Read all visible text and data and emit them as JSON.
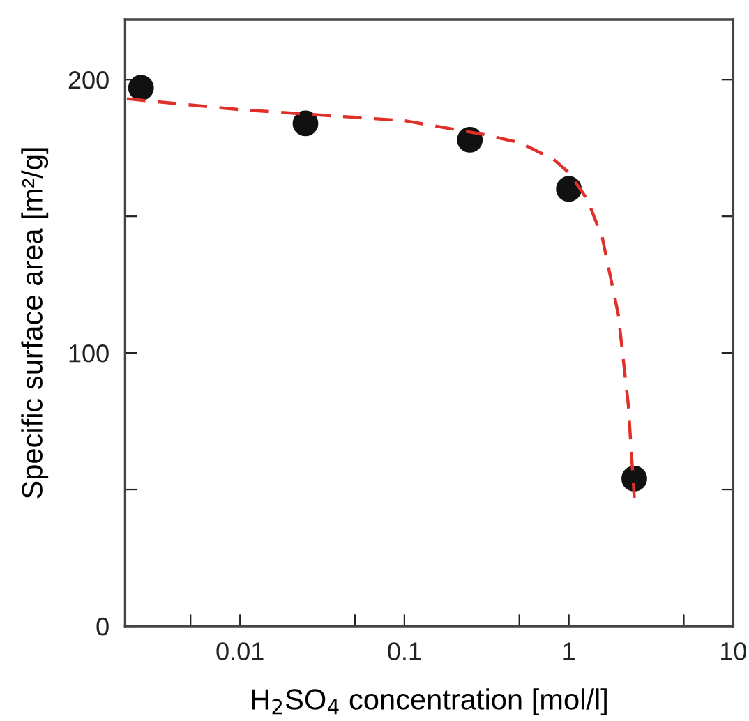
{
  "chart_data": {
    "type": "scatter",
    "xlabel": "H$_{2}$SO$_{4}$ concentration [mol/l]",
    "ylabel": "Specific surface area [m²/g]",
    "log": "x",
    "grid": false,
    "xlim": [
      0.002,
      10
    ],
    "xticks": [
      {
        "value": 0.005,
        "label": null
      },
      0.01,
      {
        "value": 0.05,
        "label": null
      },
      0.1,
      {
        "value": 0.5,
        "label": null
      },
      1,
      {
        "value": 5,
        "label": null
      },
      10
    ],
    "ylim": [
      0,
      222
    ],
    "yticks": [
      0,
      {
        "value": 50,
        "label": null
      },
      100,
      {
        "value": 150,
        "label": null
      },
      200
    ],
    "series": [
      {
        "color": "#111111",
        "marker": "circle",
        "x": [
          0.0025,
          0.025,
          0.25,
          1.0,
          2.5
        ],
        "values": [
          197,
          184,
          178,
          160,
          54
        ]
      },
      {
        "type": "line",
        "color": "#e0302a",
        "line_style": "dashed",
        "marker": "none",
        "x": [
          0.00205,
          0.01,
          0.1,
          0.3,
          0.5,
          0.8,
          1.0,
          1.3,
          1.6,
          2.0,
          2.3,
          2.5
        ],
        "values": [
          193,
          189,
          185,
          180,
          177,
          171,
          166,
          156,
          142,
          114,
          81,
          47
        ]
      }
    ]
  }
}
